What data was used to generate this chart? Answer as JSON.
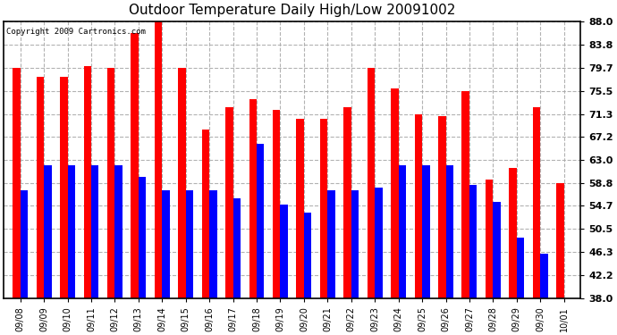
{
  "title": "Outdoor Temperature Daily High/Low 20091002",
  "copyright_text": "Copyright 2009 Cartronics.com",
  "dates": [
    "09/08",
    "09/09",
    "09/10",
    "09/11",
    "09/12",
    "09/13",
    "09/14",
    "09/15",
    "09/16",
    "09/17",
    "09/18",
    "09/19",
    "09/20",
    "09/21",
    "09/22",
    "09/23",
    "09/24",
    "09/25",
    "09/26",
    "09/27",
    "09/28",
    "09/29",
    "09/30",
    "10/01"
  ],
  "highs": [
    79.7,
    78.0,
    78.0,
    80.0,
    79.7,
    86.0,
    88.0,
    79.7,
    68.5,
    72.5,
    74.0,
    72.0,
    70.5,
    70.5,
    72.5,
    79.7,
    76.0,
    71.3,
    71.0,
    75.5,
    59.5,
    61.5,
    72.5,
    58.8
  ],
  "lows": [
    57.5,
    62.0,
    62.0,
    62.0,
    62.0,
    60.0,
    57.5,
    57.5,
    57.5,
    56.0,
    66.0,
    55.0,
    53.5,
    57.5,
    57.5,
    58.0,
    62.0,
    62.0,
    62.0,
    58.5,
    55.5,
    49.0,
    46.0,
    38.0
  ],
  "high_color": "#ff0000",
  "low_color": "#0000ff",
  "ylim_min": 38.0,
  "ylim_max": 88.0,
  "yticks": [
    38.0,
    42.2,
    46.3,
    50.5,
    54.7,
    58.8,
    63.0,
    67.2,
    71.3,
    75.5,
    79.7,
    83.8,
    88.0
  ],
  "bg_color": "#ffffff",
  "bar_width": 0.32,
  "grid_color": "#aaaaaa",
  "title_fontsize": 11
}
